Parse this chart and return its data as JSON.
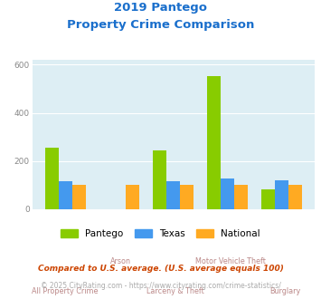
{
  "title_line1": "2019 Pantego",
  "title_line2": "Property Crime Comparison",
  "title_color": "#1a6fcc",
  "categories": [
    "All Property Crime",
    "Arson",
    "Larceny & Theft",
    "Motor Vehicle Theft",
    "Burglary"
  ],
  "pantego": [
    255,
    0,
    245,
    553,
    83
  ],
  "texas": [
    115,
    0,
    115,
    128,
    120
  ],
  "national": [
    100,
    100,
    100,
    100,
    100
  ],
  "pantego_color": "#88cc00",
  "texas_color": "#4499ee",
  "national_color": "#ffaa22",
  "bg_color": "#ddeef4",
  "ylim": [
    0,
    620
  ],
  "yticks": [
    0,
    200,
    400,
    600
  ],
  "ylabel_color": "#888888",
  "xlabel_color": "#bb8888",
  "legend_labels": [
    "Pantego",
    "Texas",
    "National"
  ],
  "footnote1": "Compared to U.S. average. (U.S. average equals 100)",
  "footnote2": "© 2025 CityRating.com - https://www.cityrating.com/crime-statistics/",
  "footnote1_color": "#cc4400",
  "footnote2_color": "#aaaaaa",
  "footnote2_link_color": "#4499ee"
}
